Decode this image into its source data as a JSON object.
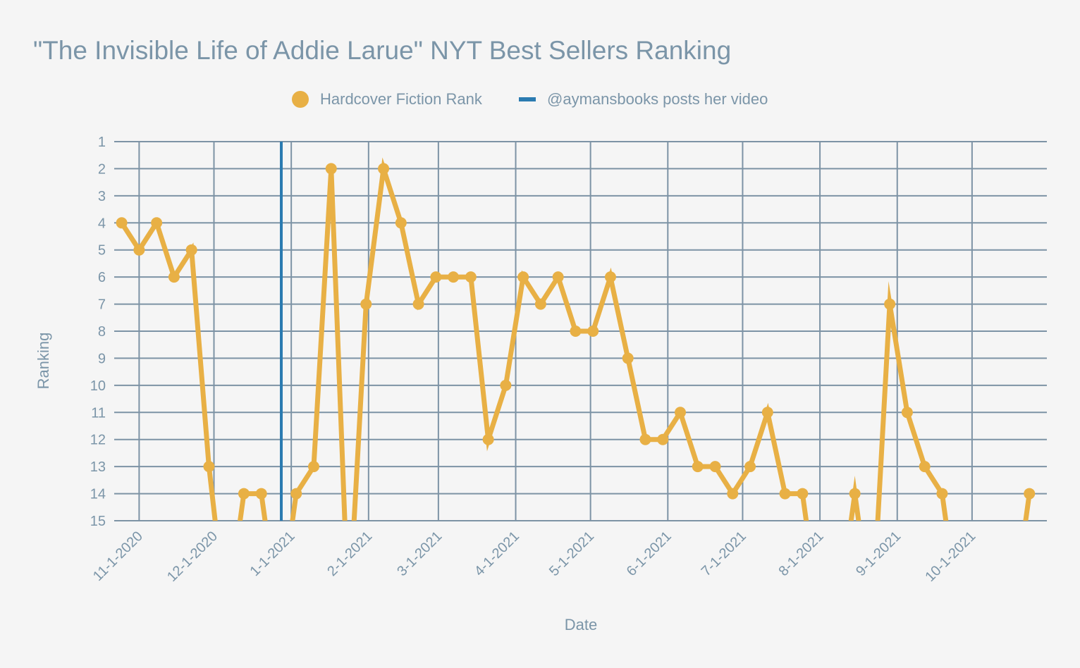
{
  "chart_data": {
    "type": "line",
    "title": "\"The Invisible Life of Addie Larue\" NYT Best Sellers Ranking",
    "xlabel": "Date",
    "ylabel": "Ranking",
    "legend": [
      "Hardcover Fiction Rank",
      "@aymansbooks posts her video"
    ],
    "legend_position": "top-center",
    "x_tick_labels": [
      "11-1-2020",
      "12-1-2020",
      "1-1-2021",
      "2-1-2021",
      "3-1-2021",
      "4-1-2021",
      "5-1-2021",
      "6-1-2021",
      "7-1-2021",
      "8-1-2021",
      "9-1-2021",
      "10-1-2021"
    ],
    "x_ticks": [
      "2020-11-01",
      "2020-12-01",
      "2021-01-01",
      "2021-02-01",
      "2021-03-01",
      "2021-04-01",
      "2021-05-01",
      "2021-06-01",
      "2021-07-01",
      "2021-08-01",
      "2021-09-01",
      "2021-10-01"
    ],
    "xlim": [
      "2020-10-22",
      "2021-10-31"
    ],
    "y_ticks": [
      1,
      2,
      3,
      4,
      5,
      6,
      7,
      8,
      9,
      10,
      11,
      12,
      13,
      14,
      15
    ],
    "ylim": [
      1,
      15
    ],
    "y_reversed": true,
    "grid": true,
    "series": [
      {
        "name": "Hardcover Fiction Rank",
        "color": "#e8b045",
        "points": [
          {
            "x": "2020-10-25",
            "y": 4
          },
          {
            "x": "2020-11-01",
            "y": 5
          },
          {
            "x": "2020-11-08",
            "y": 4
          },
          {
            "x": "2020-11-15",
            "y": 6
          },
          {
            "x": "2020-11-22",
            "y": 5
          },
          {
            "x": "2020-11-29",
            "y": 13
          },
          {
            "x": "2020-12-06",
            "y": null
          },
          {
            "x": "2020-12-13",
            "y": 14
          },
          {
            "x": "2020-12-20",
            "y": 14
          },
          {
            "x": "2020-12-27",
            "y": null
          },
          {
            "x": "2021-01-03",
            "y": 14
          },
          {
            "x": "2021-01-10",
            "y": 13
          },
          {
            "x": "2021-01-17",
            "y": 2
          },
          {
            "x": "2021-01-24",
            "y": null
          },
          {
            "x": "2021-01-31",
            "y": 7
          },
          {
            "x": "2021-02-07",
            "y": 2
          },
          {
            "x": "2021-02-14",
            "y": 4
          },
          {
            "x": "2021-02-21",
            "y": 7
          },
          {
            "x": "2021-02-28",
            "y": 6
          },
          {
            "x": "2021-03-07",
            "y": 6
          },
          {
            "x": "2021-03-14",
            "y": 6
          },
          {
            "x": "2021-03-21",
            "y": 12
          },
          {
            "x": "2021-03-28",
            "y": 10
          },
          {
            "x": "2021-04-04",
            "y": 6
          },
          {
            "x": "2021-04-11",
            "y": 7
          },
          {
            "x": "2021-04-18",
            "y": 6
          },
          {
            "x": "2021-04-25",
            "y": 8
          },
          {
            "x": "2021-05-02",
            "y": 8
          },
          {
            "x": "2021-05-09",
            "y": 6
          },
          {
            "x": "2021-05-16",
            "y": 9
          },
          {
            "x": "2021-05-23",
            "y": 12
          },
          {
            "x": "2021-05-30",
            "y": 12
          },
          {
            "x": "2021-06-06",
            "y": 11
          },
          {
            "x": "2021-06-13",
            "y": 13
          },
          {
            "x": "2021-06-20",
            "y": 13
          },
          {
            "x": "2021-06-27",
            "y": 14
          },
          {
            "x": "2021-07-04",
            "y": 13
          },
          {
            "x": "2021-07-11",
            "y": 11
          },
          {
            "x": "2021-07-18",
            "y": 14
          },
          {
            "x": "2021-07-25",
            "y": 14
          },
          {
            "x": "2021-08-01",
            "y": null
          },
          {
            "x": "2021-08-08",
            "y": null
          },
          {
            "x": "2021-08-15",
            "y": 14
          },
          {
            "x": "2021-08-22",
            "y": null
          },
          {
            "x": "2021-08-29",
            "y": 7
          },
          {
            "x": "2021-09-05",
            "y": 11
          },
          {
            "x": "2021-09-12",
            "y": 13
          },
          {
            "x": "2021-09-19",
            "y": 14
          },
          {
            "x": "2021-09-26",
            "y": null
          },
          {
            "x": "2021-10-03",
            "y": null
          },
          {
            "x": "2021-10-10",
            "y": null
          },
          {
            "x": "2021-10-17",
            "y": null
          },
          {
            "x": "2021-10-24",
            "y": 14
          }
        ]
      },
      {
        "name": "@aymansbooks posts her video",
        "type": "vertical-line",
        "x": "2020-12-28",
        "color": "#2b7bb1"
      }
    ]
  }
}
